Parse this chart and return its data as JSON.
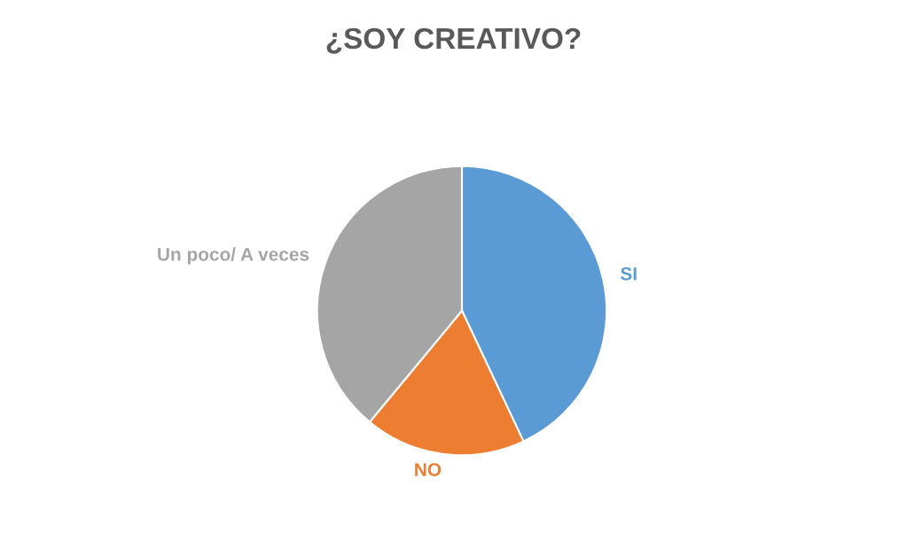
{
  "chart_data": {
    "type": "pie",
    "title": "¿SOY CREATIVO?",
    "categories": [
      "SI",
      "NO",
      "Un poco/ A veces"
    ],
    "values": [
      43,
      18,
      39
    ],
    "colors": [
      "#5b9bd5",
      "#ed7d31",
      "#a5a5a5"
    ],
    "legend": false
  }
}
